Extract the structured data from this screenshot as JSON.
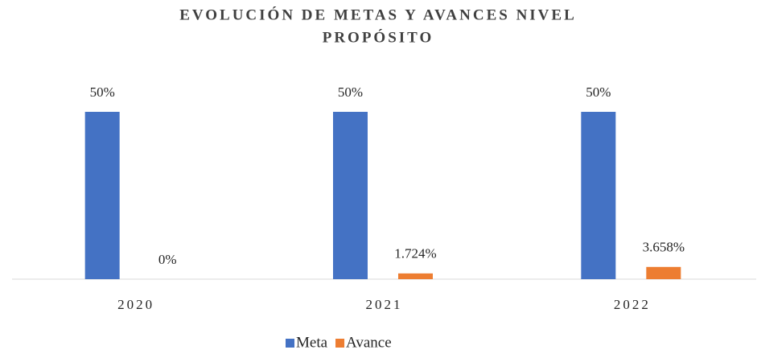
{
  "chart_data": {
    "type": "bar",
    "title": [
      "EVOLUCIÓN DE METAS Y AVANCES NIVEL",
      "PROPÓSITO"
    ],
    "categories": [
      "2020",
      "2021",
      "2022"
    ],
    "series": [
      {
        "name": "Meta",
        "color": "#4472c4",
        "values": [
          50,
          50,
          50
        ],
        "value_labels": [
          "50%",
          "50%",
          "50%"
        ]
      },
      {
        "name": "Avance",
        "color": "#ed7d31",
        "values": [
          0,
          1.724,
          3.658
        ],
        "value_labels": [
          "0%",
          "1.724%",
          "3.658%"
        ]
      }
    ],
    "legend": "bottom"
  }
}
